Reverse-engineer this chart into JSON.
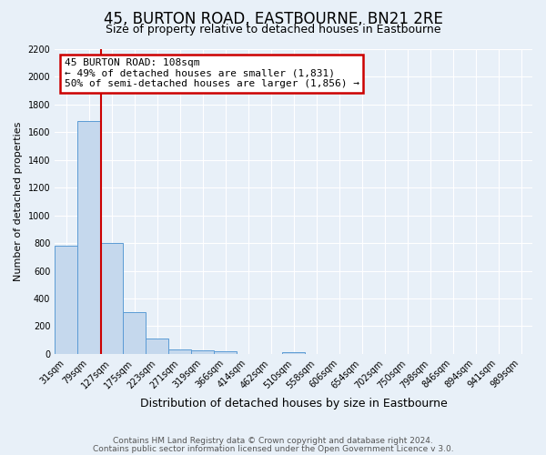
{
  "title": "45, BURTON ROAD, EASTBOURNE, BN21 2RE",
  "subtitle": "Size of property relative to detached houses in Eastbourne",
  "xlabel": "Distribution of detached houses by size in Eastbourne",
  "ylabel": "Number of detached properties",
  "categories": [
    "31sqm",
    "79sqm",
    "127sqm",
    "175sqm",
    "223sqm",
    "271sqm",
    "319sqm",
    "366sqm",
    "414sqm",
    "462sqm",
    "510sqm",
    "558sqm",
    "606sqm",
    "654sqm",
    "702sqm",
    "750sqm",
    "798sqm",
    "846sqm",
    "894sqm",
    "941sqm",
    "989sqm"
  ],
  "bar_values": [
    780,
    1680,
    800,
    300,
    110,
    35,
    25,
    20,
    0,
    0,
    15,
    0,
    0,
    0,
    0,
    0,
    0,
    0,
    0,
    0,
    0
  ],
  "bar_color": "#c5d8ed",
  "bar_edge_color": "#5b9bd5",
  "ylim": [
    0,
    2200
  ],
  "yticks": [
    0,
    200,
    400,
    600,
    800,
    1000,
    1200,
    1400,
    1600,
    1800,
    2000,
    2200
  ],
  "red_line_x": 1.52,
  "annotation_title": "45 BURTON ROAD: 108sqm",
  "annotation_line1": "← 49% of detached houses are smaller (1,831)",
  "annotation_line2": "50% of semi-detached houses are larger (1,856) →",
  "annotation_box_color": "#ffffff",
  "annotation_box_edge": "#cc0000",
  "red_line_color": "#cc0000",
  "footer1": "Contains HM Land Registry data © Crown copyright and database right 2024.",
  "footer2": "Contains public sector information licensed under the Open Government Licence v 3.0.",
  "background_color": "#e8f0f8",
  "grid_color": "#ffffff",
  "title_fontsize": 12,
  "subtitle_fontsize": 9,
  "xlabel_fontsize": 9,
  "ylabel_fontsize": 8,
  "tick_fontsize": 7,
  "annotation_fontsize": 8,
  "footer_fontsize": 6.5
}
